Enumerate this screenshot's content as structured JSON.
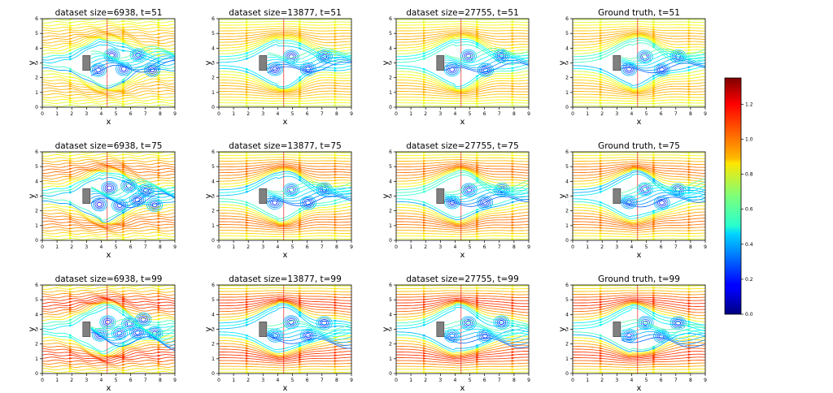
{
  "chart_data": {
    "type": "streamplot",
    "xlabel": "x",
    "ylabel": "y",
    "xlim": [
      0,
      9
    ],
    "ylim": [
      0,
      6
    ],
    "x_ticks": [
      "0",
      "1",
      "2",
      "3",
      "4",
      "5",
      "6",
      "7",
      "8",
      "9"
    ],
    "y_ticks": [
      "0",
      "1",
      "2",
      "3",
      "4",
      "5",
      "6"
    ],
    "obstacle": {
      "x": [
        2.75,
        3.25
      ],
      "y": [
        2.5,
        3.5
      ],
      "color": "#808080"
    },
    "panels": [
      {
        "title": "dataset size=6938, t=51"
      },
      {
        "title": "dataset size=13877, t=51"
      },
      {
        "title": "dataset size=27755, t=51"
      },
      {
        "title": "Ground truth, t=51"
      },
      {
        "title": "dataset size=6938, t=75"
      },
      {
        "title": "dataset size=13877, t=75"
      },
      {
        "title": "dataset size=27755, t=75"
      },
      {
        "title": "Ground truth, t=75"
      },
      {
        "title": "dataset size=6938, t=99"
      },
      {
        "title": "dataset size=13877, t=99"
      },
      {
        "title": "dataset size=27755, t=99"
      },
      {
        "title": "Ground truth, t=99"
      }
    ],
    "colorbar": {
      "colormap": "jet",
      "range": [
        0,
        1.35
      ],
      "ticks": [
        "0.0",
        "0.2",
        "0.4",
        "0.6",
        "0.8",
        "1.0",
        "1.2"
      ]
    }
  }
}
